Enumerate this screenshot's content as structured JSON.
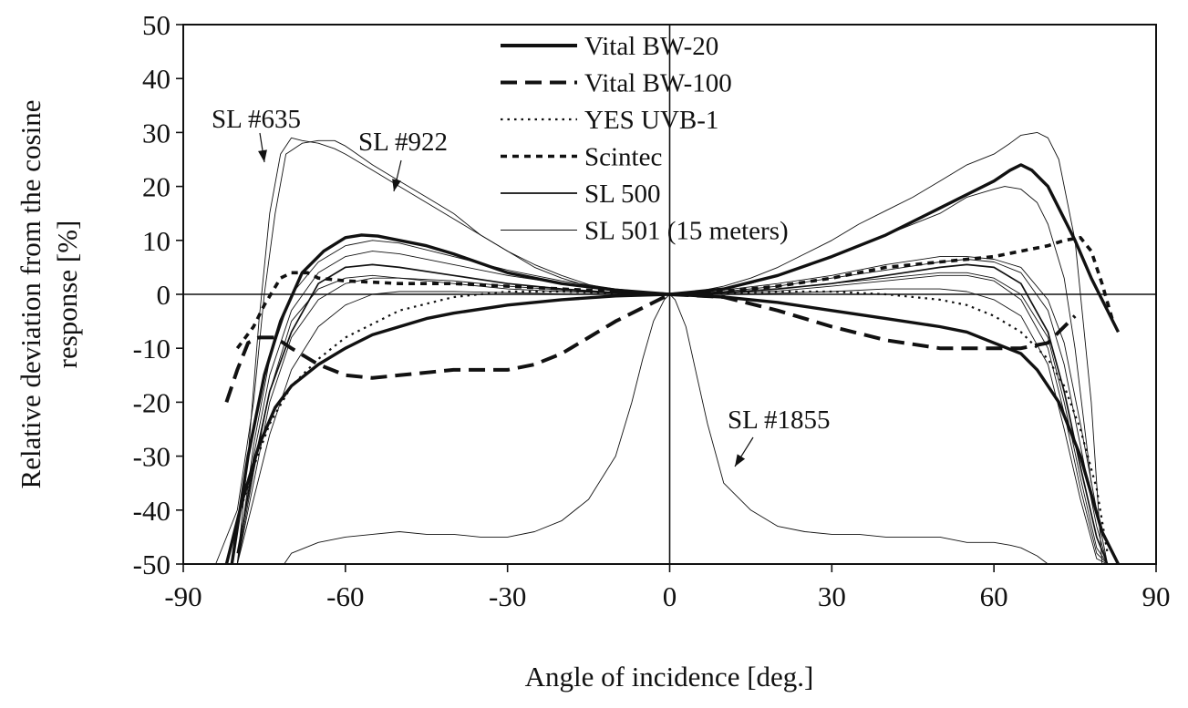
{
  "chart_data": {
    "type": "line",
    "title": "",
    "xlabel": "Angle of incidence [deg.]",
    "ylabel_line1": "Relative deviation from the cosine",
    "ylabel_line2": "response [%]",
    "xlim": [
      -90,
      90
    ],
    "ylim": [
      -50,
      50
    ],
    "x_ticks": [
      -90,
      -60,
      -30,
      0,
      30,
      60,
      90
    ],
    "y_ticks": [
      -50,
      -40,
      -30,
      -20,
      -10,
      0,
      10,
      20,
      30,
      40,
      50
    ],
    "grid": false,
    "legend_position": "top-center",
    "legend": [
      {
        "label": "Vital BW-20",
        "style": "thick-solid"
      },
      {
        "label": "Vital BW-100",
        "style": "thick-dash"
      },
      {
        "label": "YES UVB-1",
        "style": "dotted"
      },
      {
        "label": "Scintec",
        "style": "short-dash"
      },
      {
        "label": "SL 500",
        "style": "solid"
      },
      {
        "label": "SL 501 (15 meters)",
        "style": "thin-solid"
      }
    ],
    "annotations": [
      {
        "text": "SL #635",
        "x": -75,
        "y": 26
      },
      {
        "text": "SL #922",
        "x": -50,
        "y": 20
      },
      {
        "text": "SL #1855",
        "x": 12,
        "y": -32
      }
    ],
    "series": [
      {
        "name": "Vital BW-20",
        "style": "thick-solid",
        "x": [
          -82,
          -79,
          -76,
          -73,
          -70,
          -65,
          -60,
          -55,
          -50,
          -45,
          -40,
          -30,
          -20,
          -10,
          0,
          10,
          20,
          30,
          40,
          50,
          55,
          60,
          65,
          68,
          72,
          76,
          80,
          83
        ],
        "y": [
          -50,
          -38,
          -28,
          -21,
          -17,
          -13,
          -10,
          -7.5,
          -6,
          -4.5,
          -3.5,
          -2,
          -1,
          -0.3,
          0,
          -0.5,
          -1.5,
          -3,
          -4.5,
          -6,
          -7,
          -9,
          -11,
          -14,
          -20,
          -30,
          -44,
          -50
        ]
      },
      {
        "name": "Vital BW-100",
        "style": "thick-dash",
        "x": [
          -82,
          -80,
          -78,
          -76,
          -73,
          -70,
          -65,
          -60,
          -55,
          -50,
          -40,
          -30,
          -25,
          -20,
          -15,
          -10,
          -5,
          0,
          10,
          20,
          30,
          40,
          50,
          60,
          65,
          70,
          73,
          75
        ],
        "y": [
          -20,
          -14,
          -9,
          -8,
          -8,
          -10,
          -13,
          -15,
          -15.5,
          -15,
          -14,
          -14,
          -13,
          -11,
          -8,
          -5,
          -2.5,
          0,
          -0.5,
          -3,
          -6,
          -8.5,
          -10,
          -10,
          -10,
          -9,
          -6,
          -4
        ]
      },
      {
        "name": "YES UVB-1",
        "style": "dotted",
        "x": [
          -80,
          -77,
          -74,
          -70,
          -65,
          -60,
          -50,
          -40,
          -30,
          -20,
          -10,
          0,
          10,
          20,
          30,
          40,
          50,
          55,
          60,
          65,
          70,
          73,
          76,
          79,
          81
        ],
        "y": [
          -42,
          -32,
          -24,
          -17,
          -12,
          -8,
          -3,
          -0.5,
          0.5,
          0.5,
          0.2,
          0,
          0.2,
          0.5,
          0.5,
          0,
          -1,
          -2,
          -4,
          -7,
          -12,
          -17,
          -25,
          -36,
          -48
        ]
      },
      {
        "name": "Scintec",
        "style": "short-dash",
        "x": [
          -80,
          -77,
          -75,
          -72,
          -70,
          -67,
          -65,
          -60,
          -50,
          -40,
          -30,
          -20,
          -10,
          0,
          10,
          20,
          30,
          40,
          50,
          60,
          65,
          70,
          73,
          76,
          78,
          80,
          82
        ],
        "y": [
          -10,
          -6,
          -2,
          3,
          4,
          4,
          3,
          2.5,
          2,
          2,
          1.5,
          1,
          0.5,
          0,
          0.5,
          1.5,
          3,
          5,
          6,
          7,
          8,
          9,
          10,
          10.5,
          8,
          2,
          -5
        ]
      },
      {
        "name": "SL 500",
        "style": "solid",
        "x": [
          -80,
          -77,
          -74,
          -70,
          -65,
          -60,
          -55,
          -50,
          -40,
          -30,
          -20,
          -10,
          0,
          10,
          20,
          30,
          40,
          50,
          55,
          60,
          65,
          70,
          73,
          76,
          79,
          81
        ],
        "y": [
          -48,
          -32,
          -18,
          -7,
          2,
          5,
          5.5,
          5,
          3.5,
          2,
          1,
          0.3,
          0,
          0.3,
          1,
          2,
          3.5,
          5,
          5.5,
          5,
          2,
          -7,
          -18,
          -32,
          -45,
          -50
        ]
      },
      {
        "name": "SL 501 (15 meters)",
        "style": "thin-solid",
        "x": [
          -80,
          -77,
          -74,
          -70,
          -65,
          -60,
          -55,
          -50,
          -40,
          -30,
          -20,
          -10,
          0,
          10,
          20,
          30,
          40,
          50,
          55,
          60,
          65,
          70,
          73,
          76,
          79,
          81
        ],
        "y": [
          -50,
          -35,
          -20,
          -8,
          -1,
          2,
          3,
          3,
          2.5,
          1.5,
          0.8,
          0.2,
          0,
          0.3,
          1,
          2,
          3,
          4,
          4,
          3,
          0,
          -8,
          -20,
          -34,
          -47,
          -50
        ]
      },
      {
        "name": "",
        "style": "thin-solid",
        "x": [
          -80,
          -77,
          -74,
          -70,
          -65,
          -60,
          -55,
          -50,
          -40,
          -30,
          -20,
          -10,
          0,
          10,
          20,
          30,
          40,
          50,
          55,
          60,
          65,
          70,
          73,
          76,
          79,
          81
        ],
        "y": [
          -50,
          -30,
          -15,
          -3,
          4,
          7,
          8,
          7.5,
          5.5,
          3.5,
          2,
          0.8,
          0,
          0.5,
          1.5,
          3,
          4.5,
          6,
          6.5,
          6,
          4,
          -3,
          -13,
          -28,
          -43,
          -50
        ]
      },
      {
        "name": "",
        "style": "thin-solid",
        "x": [
          -80,
          -77,
          -74,
          -70,
          -65,
          -60,
          -55,
          -50,
          -40,
          -30,
          -20,
          -10,
          0,
          10,
          20,
          30,
          40,
          50,
          55,
          60,
          65,
          70,
          73,
          76,
          79,
          81
        ],
        "y": [
          -50,
          -33,
          -18,
          -5,
          1,
          3,
          3.5,
          3,
          2,
          1,
          0.5,
          0.2,
          0,
          0.2,
          0.6,
          1.5,
          2.5,
          3.5,
          3.5,
          2.5,
          -1,
          -10,
          -22,
          -36,
          -48,
          -50
        ]
      },
      {
        "name": "",
        "style": "thin-solid",
        "x": [
          -80,
          -77,
          -74,
          -70,
          -65,
          -60,
          -55,
          -50,
          -40,
          -30,
          -20,
          -10,
          0,
          10,
          20,
          30,
          40,
          50,
          55,
          60,
          65,
          70,
          73,
          76,
          79,
          81
        ],
        "y": [
          -50,
          -28,
          -12,
          0,
          6,
          9,
          10,
          9.5,
          7,
          4.5,
          2.5,
          1,
          0,
          0.8,
          2,
          3.5,
          5.5,
          7,
          7,
          6.5,
          5,
          -1,
          -9,
          -24,
          -40,
          -50
        ]
      },
      {
        "name": "",
        "style": "thin-solid",
        "x": [
          -80,
          -77,
          -74,
          -70,
          -65,
          -60,
          -55,
          -50,
          -40,
          -30,
          -20,
          -10,
          0,
          10,
          20,
          30,
          40,
          50,
          55,
          60,
          65,
          70,
          73,
          76,
          79,
          81
        ],
        "y": [
          -50,
          -38,
          -26,
          -14,
          -6,
          -2,
          0,
          0.5,
          0.5,
          0.3,
          0.1,
          0,
          0,
          0,
          0.2,
          0.5,
          1,
          1,
          0.5,
          -1,
          -4,
          -13,
          -25,
          -38,
          -49,
          -50
        ]
      },
      {
        "name": "",
        "style": "thick-solid",
        "x": [
          -81,
          -78,
          -75,
          -72,
          -68,
          -64,
          -60,
          -57,
          -54,
          -50,
          -45,
          -40,
          -30,
          -20,
          -10,
          0,
          10,
          20,
          30,
          40,
          50,
          55,
          60,
          63,
          65,
          67,
          70,
          72,
          75,
          78,
          81,
          83
        ],
        "y": [
          -50,
          -30,
          -15,
          -5,
          4,
          8,
          10.5,
          11,
          10.8,
          10,
          9,
          7.5,
          4,
          2,
          0.8,
          0,
          1,
          3.5,
          7,
          11,
          16,
          18.5,
          21,
          23,
          24,
          23,
          20,
          16,
          10,
          3,
          -3,
          -7
        ]
      },
      {
        "name": "",
        "style": "thin-solid",
        "x": [
          -84,
          -80,
          -77,
          -75,
          -73,
          -71,
          -68,
          -65,
          -62,
          -60,
          -55,
          -50,
          -45,
          -40,
          -35,
          -30,
          -25,
          -20,
          -15,
          -10,
          -5,
          0,
          5,
          10,
          15,
          20,
          25,
          30,
          35,
          40,
          45,
          50,
          55,
          60,
          63,
          65,
          68,
          70,
          72,
          75,
          78,
          80
        ],
        "y": [
          -50,
          -40,
          -20,
          0,
          15,
          26,
          28,
          28.5,
          28.5,
          27.5,
          24,
          21,
          18,
          15,
          11,
          8,
          5,
          3,
          1.5,
          0.5,
          0,
          0,
          0.5,
          1.5,
          3,
          5,
          7.5,
          10,
          13,
          15.5,
          18,
          21,
          24,
          26,
          28,
          29.5,
          30,
          29,
          25,
          10,
          -20,
          -50
        ]
      },
      {
        "name": "",
        "style": "thin-solid",
        "x": [
          -80,
          -78,
          -76,
          -74,
          -72,
          -70,
          -68,
          -65,
          -62,
          -60,
          -55,
          -50,
          -45,
          -40,
          -35,
          -30,
          -25,
          -20,
          -15,
          -10,
          -5,
          0,
          5,
          10,
          15,
          20,
          30,
          40,
          50,
          55,
          60,
          62,
          65,
          68,
          70,
          73,
          75,
          78
        ],
        "y": [
          -50,
          -30,
          -5,
          15,
          26,
          29,
          28.5,
          28,
          27,
          26,
          23,
          20,
          17,
          14,
          11,
          8,
          5.5,
          3.5,
          1.8,
          0.8,
          0.2,
          0,
          0.3,
          1,
          2,
          3.5,
          7,
          11,
          15,
          18,
          19.5,
          20,
          19.5,
          17,
          13,
          3,
          -10,
          -35
        ]
      },
      {
        "name": "",
        "style": "thin-solid",
        "x": [
          -72,
          -70,
          -65,
          -60,
          -55,
          -50,
          -45,
          -40,
          -35,
          -30,
          -25,
          -20,
          -15,
          -10,
          -7,
          -5,
          -3,
          -1,
          0,
          1,
          3,
          5,
          7,
          10,
          15,
          20,
          25,
          30,
          35,
          40,
          45,
          50,
          55,
          60,
          63,
          65,
          68,
          70
        ],
        "y": [
          -51,
          -48,
          -46,
          -45,
          -44.5,
          -44,
          -44.5,
          -44.5,
          -45,
          -45,
          -44,
          -42,
          -38,
          -30,
          -20,
          -12,
          -5,
          -1,
          0,
          -1,
          -6,
          -15,
          -24,
          -35,
          -40,
          -43,
          -44,
          -44.5,
          -44.5,
          -45,
          -45,
          -45,
          -46,
          -46,
          -46.5,
          -47,
          -48.5,
          -50
        ]
      }
    ]
  }
}
